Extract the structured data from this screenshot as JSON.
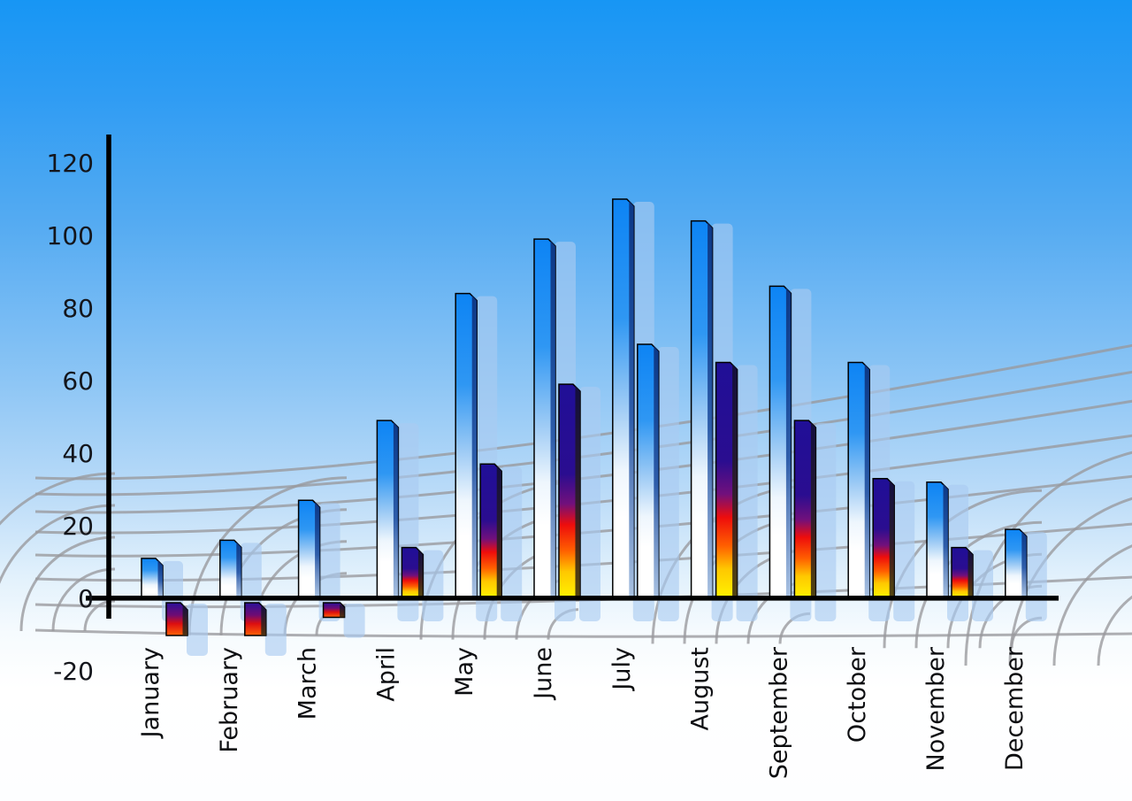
{
  "chart_data": {
    "type": "bar",
    "title": "",
    "xlabel": "",
    "ylabel": "",
    "categories": [
      "January",
      "February",
      "March",
      "April",
      "May",
      "June",
      "July",
      "August",
      "September",
      "October",
      "November",
      "December"
    ],
    "series": [
      {
        "name": "primary-blue-bars",
        "style": "blue-gradient",
        "values": [
          11,
          16,
          27,
          49,
          84,
          99,
          110,
          104,
          86,
          65,
          32,
          19
        ]
      },
      {
        "name": "secondary-accent-bars",
        "style": "fire-gradient",
        "values": [
          -10,
          -10,
          -5,
          14,
          37,
          59,
          70,
          65,
          49,
          33,
          14,
          null
        ],
        "bar_styles": [
          "fire",
          "fire",
          "fire",
          "fire",
          "fire",
          "fire",
          "blue",
          "fire",
          "fire",
          "fire",
          "fire",
          null
        ]
      }
    ],
    "yticks": [
      120,
      100,
      80,
      60,
      40,
      20,
      0,
      -20
    ],
    "ylim": [
      -20,
      120
    ],
    "legend": "none",
    "grid": "decorative curved 3d floor grid",
    "background": "blue sky gradient fading to white"
  },
  "colors": {
    "sky_top": "#1796f4",
    "bar_blue_top": "#0d84f4",
    "bar_fade_bottom": "#ffffff",
    "fire_navy": "#200f97",
    "fire_red": "#ee0d0c",
    "fire_orange": "#ff7a00",
    "fire_yellow": "#fff200",
    "ghost_bar": "#a9cbf1",
    "grid_line": "#98999c",
    "axis_line": "#000000",
    "tick_label": "#14161c",
    "month_label": "#0c0d10"
  }
}
